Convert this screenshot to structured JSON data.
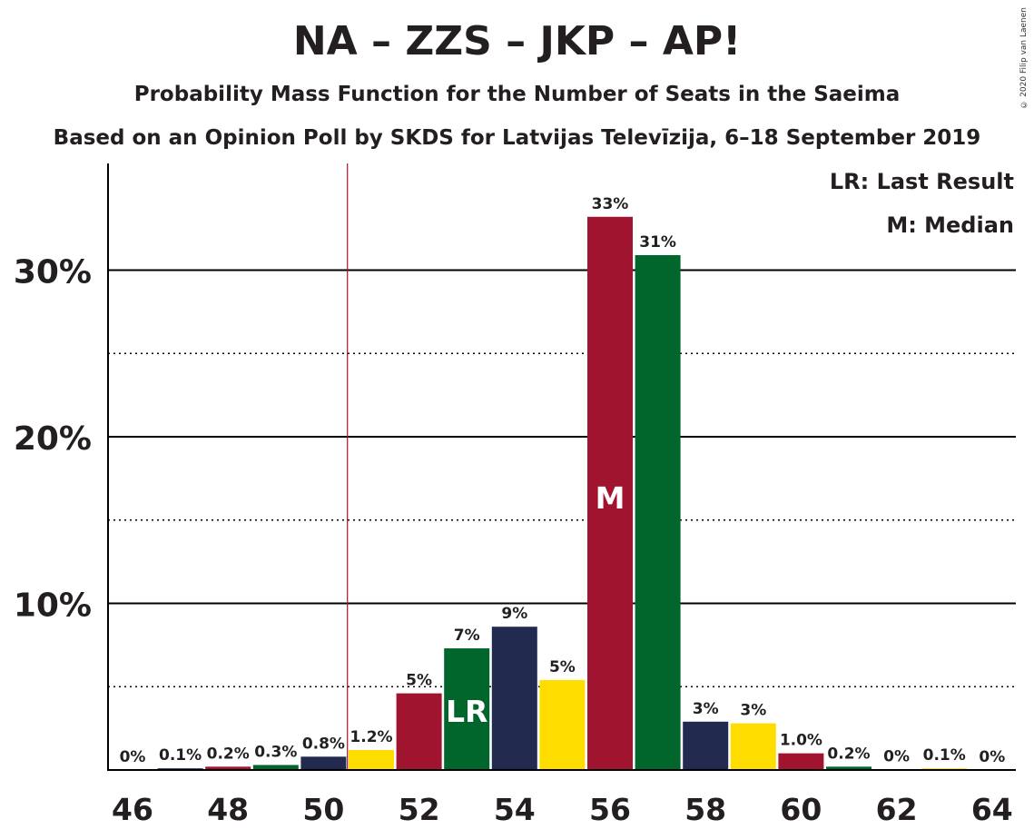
{
  "title": "NA – ZZS – JKP – AP!",
  "subtitle1": "Probability Mass Function for the Number of Seats in the Saeima",
  "subtitle2": "Based on an Opinion Poll by SKDS for Latvijas Televīzija, 6–18 September 2019",
  "copyright": "© 2020 Filip van Laenen",
  "legend": {
    "last_result": "LR: Last Result",
    "median": "M: Median"
  },
  "colors": {
    "crimson": "#a0142f",
    "green": "#00662c",
    "navy": "#232a50",
    "yellow": "#ffdd00"
  },
  "chart_data": {
    "type": "bar",
    "x": [
      46,
      47,
      48,
      49,
      50,
      51,
      52,
      53,
      54,
      55,
      56,
      57,
      58,
      59,
      60,
      61,
      62,
      63,
      64
    ],
    "values": [
      0,
      0.1,
      0.2,
      0.3,
      0.8,
      1.2,
      4.6,
      7.3,
      8.6,
      5.4,
      33.2,
      30.9,
      2.9,
      2.8,
      1.0,
      0.2,
      0.02,
      0.1,
      0.01
    ],
    "value_labels": [
      "0%",
      "0.1%",
      "0.2%",
      "0.3%",
      "0.8%",
      "1.2%",
      "5%",
      "7%",
      "9%",
      "5%",
      "33%",
      "31%",
      "3%",
      "3%",
      "1.0%",
      "0.2%",
      "0%",
      "0.1%",
      "0%"
    ],
    "bar_colors": [
      "#00662c",
      "#232a50",
      "#a0142f",
      "#00662c",
      "#232a50",
      "#ffdd00",
      "#a0142f",
      "#00662c",
      "#232a50",
      "#ffdd00",
      "#a0142f",
      "#00662c",
      "#232a50",
      "#ffdd00",
      "#a0142f",
      "#00662c",
      "#232a50",
      "#ffdd00",
      "#a0142f"
    ],
    "x_tick_labels": [
      "46",
      "48",
      "50",
      "52",
      "54",
      "56",
      "58",
      "60",
      "62",
      "64"
    ],
    "y_ticks": [
      10,
      20,
      30
    ],
    "y_tick_labels": [
      "10%",
      "20%",
      "30%"
    ],
    "y_minor_ticks": [
      5,
      15,
      25
    ],
    "ylim": [
      0,
      36
    ],
    "last_result_seat": 53,
    "last_result_label": "LR",
    "median_seat": 56,
    "median_label": "M",
    "last_result_line_x": 50.5
  }
}
